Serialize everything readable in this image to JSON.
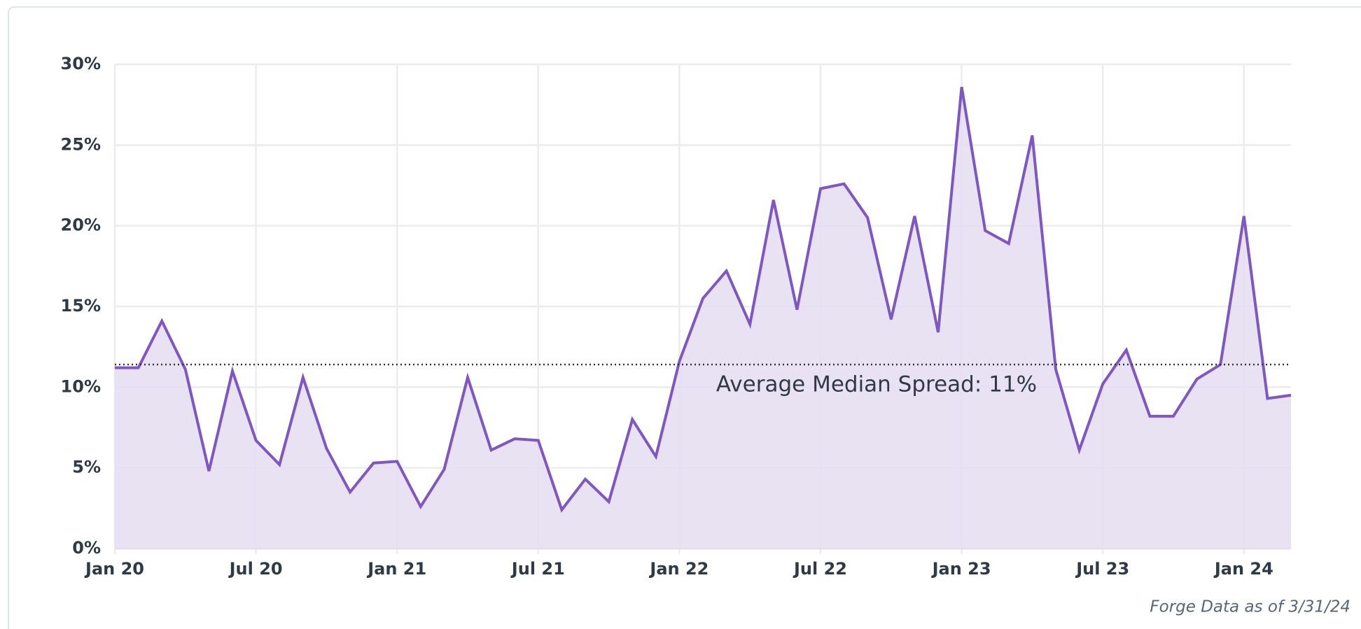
{
  "chart_data": {
    "type": "area",
    "x": [
      "2020-01",
      "2020-02",
      "2020-03",
      "2020-04",
      "2020-05",
      "2020-06",
      "2020-07",
      "2020-08",
      "2020-09",
      "2020-10",
      "2020-11",
      "2020-12",
      "2021-01",
      "2021-02",
      "2021-03",
      "2021-04",
      "2021-05",
      "2021-06",
      "2021-07",
      "2021-08",
      "2021-09",
      "2021-10",
      "2021-11",
      "2021-12",
      "2022-01",
      "2022-02",
      "2022-03",
      "2022-04",
      "2022-05",
      "2022-06",
      "2022-07",
      "2022-08",
      "2022-09",
      "2022-10",
      "2022-11",
      "2022-12",
      "2023-01",
      "2023-02",
      "2023-03",
      "2023-04",
      "2023-05",
      "2023-06",
      "2023-07",
      "2023-08",
      "2023-09",
      "2023-10",
      "2023-11",
      "2023-12",
      "2024-01",
      "2024-02",
      "2024-03"
    ],
    "series": [
      {
        "color": "#7e57c2",
        "fill": "#e5ddf1",
        "values": [
          11.2,
          11.2,
          14.1,
          11.1,
          4.8,
          11.0,
          6.7,
          5.2,
          10.6,
          6.2,
          3.5,
          5.3,
          5.4,
          2.6,
          4.9,
          10.6,
          6.1,
          6.8,
          6.7,
          2.4,
          4.3,
          2.9,
          8.0,
          5.7,
          11.6,
          15.5,
          17.2,
          13.9,
          21.6,
          14.8,
          22.3,
          22.6,
          20.5,
          14.2,
          20.6,
          13.4,
          28.6,
          19.7,
          18.9,
          25.6,
          11.1,
          6.1,
          10.2,
          12.3,
          8.2,
          8.2,
          10.5,
          11.4,
          20.6,
          9.3,
          9.5
        ]
      }
    ],
    "xlim": [
      "2020-01",
      "2024-03"
    ],
    "xticks": [
      {
        "value": "2020-01",
        "label": "Jan 20"
      },
      {
        "value": "2020-07",
        "label": "Jul 20"
      },
      {
        "value": "2021-01",
        "label": "Jan 21"
      },
      {
        "value": "2021-07",
        "label": "Jul 21"
      },
      {
        "value": "2022-01",
        "label": "Jan 22"
      },
      {
        "value": "2022-07",
        "label": "Jul 22"
      },
      {
        "value": "2023-01",
        "label": "Jan 23"
      },
      {
        "value": "2023-07",
        "label": "Jul 23"
      },
      {
        "value": "2024-01",
        "label": "Jan 24"
      }
    ],
    "ylim": [
      0,
      30
    ],
    "yticks": [
      {
        "value": 0,
        "label": "0%"
      },
      {
        "value": 5,
        "label": "5%"
      },
      {
        "value": 10,
        "label": "10%"
      },
      {
        "value": 15,
        "label": "15%"
      },
      {
        "value": 20,
        "label": "20%"
      },
      {
        "value": 25,
        "label": "25%"
      },
      {
        "value": 30,
        "label": "30%"
      }
    ],
    "grid": true,
    "annotation": {
      "text": "Average Median Spread: 11%",
      "value": 11.4
    },
    "footnote": "Forge Data as of 3/31/24"
  }
}
